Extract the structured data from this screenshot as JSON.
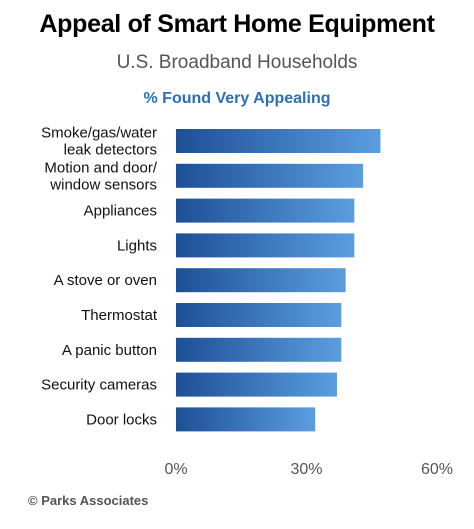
{
  "chart_data": {
    "type": "bar",
    "orientation": "horizontal",
    "title": "Appeal of Smart Home Equipment",
    "subtitle": "U.S. Broadband Households",
    "metric_label": "% Found Very Appealing",
    "categories": [
      [
        "Smoke/gas/water",
        "leak detectors"
      ],
      [
        "Motion and door/",
        "window sensors"
      ],
      [
        "Appliances"
      ],
      [
        "Lights"
      ],
      [
        "A stove or oven"
      ],
      [
        "Thermostat"
      ],
      [
        "A panic button"
      ],
      [
        "Security cameras"
      ],
      [
        "Door locks"
      ]
    ],
    "values": [
      47,
      43,
      41,
      41,
      39,
      38,
      38,
      37,
      32
    ],
    "xlim": [
      0,
      60
    ],
    "x_ticks": [
      "0%",
      "30%",
      "60%"
    ],
    "x_tick_values": [
      0,
      30,
      60
    ],
    "bar_gradient": [
      "#1e4f96",
      "#5b9ee0"
    ],
    "grid": false,
    "legend": "none"
  },
  "footer": "© Parks Associates"
}
